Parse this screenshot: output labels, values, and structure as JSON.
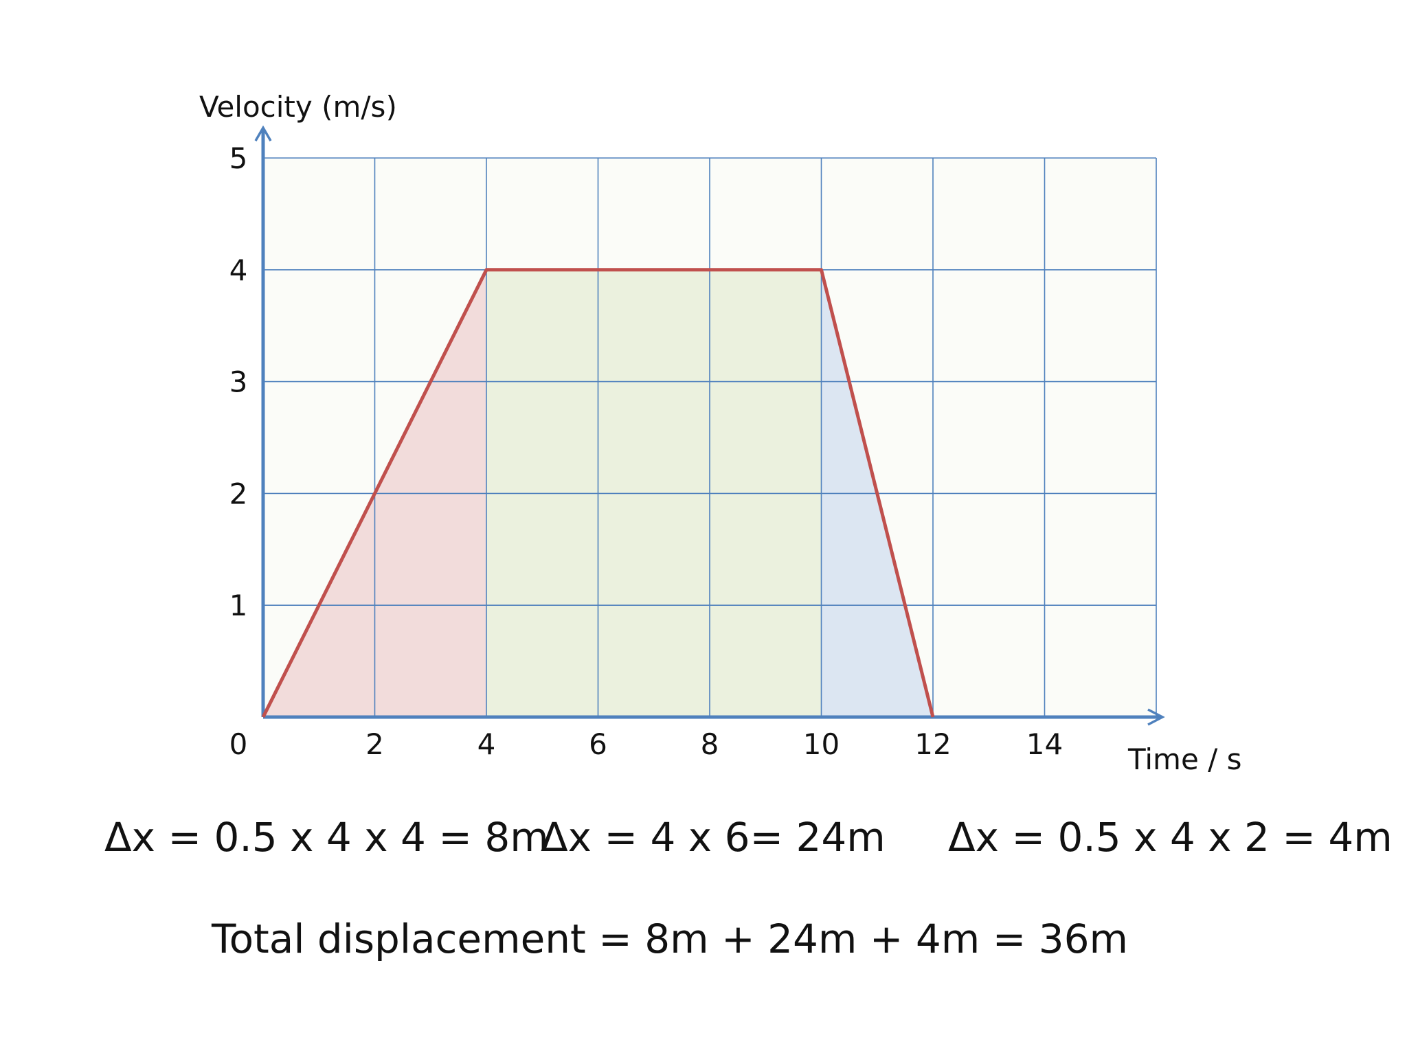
{
  "chart_data": {
    "type": "line",
    "xlabel": "Time / s",
    "ylabel": "Velocity (m/s)",
    "xlim": [
      0,
      16
    ],
    "ylim": [
      0,
      5
    ],
    "x_ticks": [
      0,
      2,
      4,
      6,
      8,
      10,
      12,
      14
    ],
    "y_ticks": [
      1,
      2,
      3,
      4,
      5
    ],
    "grid": true,
    "series": [
      {
        "points": [
          [
            0,
            0
          ],
          [
            4,
            4
          ],
          [
            10,
            4
          ],
          [
            12,
            0
          ],
          [
            16,
            0
          ]
        ],
        "color": "#c0504d"
      }
    ],
    "shaded_regions": [
      {
        "x": [
          0,
          4
        ],
        "shape": "triangle",
        "color": "#f2dcdb"
      },
      {
        "x": [
          4,
          10
        ],
        "shape": "rectangle",
        "color": "#ebf1de"
      },
      {
        "x": [
          10,
          12
        ],
        "shape": "triangle",
        "color": "#dce6f2"
      }
    ],
    "colors": {
      "axis": "#4f81bd",
      "grid": "#4f81bd",
      "line": "#c0504d"
    }
  },
  "equations": {
    "region1": "Δx = 0.5 x 4 x 4 = 8m",
    "region2": "Δx = 4 x 6= 24m",
    "region3": "Δx = 0.5 x 4 x 2 = 4m",
    "total": "Total displacement = 8m + 24m + 4m = 36m"
  }
}
